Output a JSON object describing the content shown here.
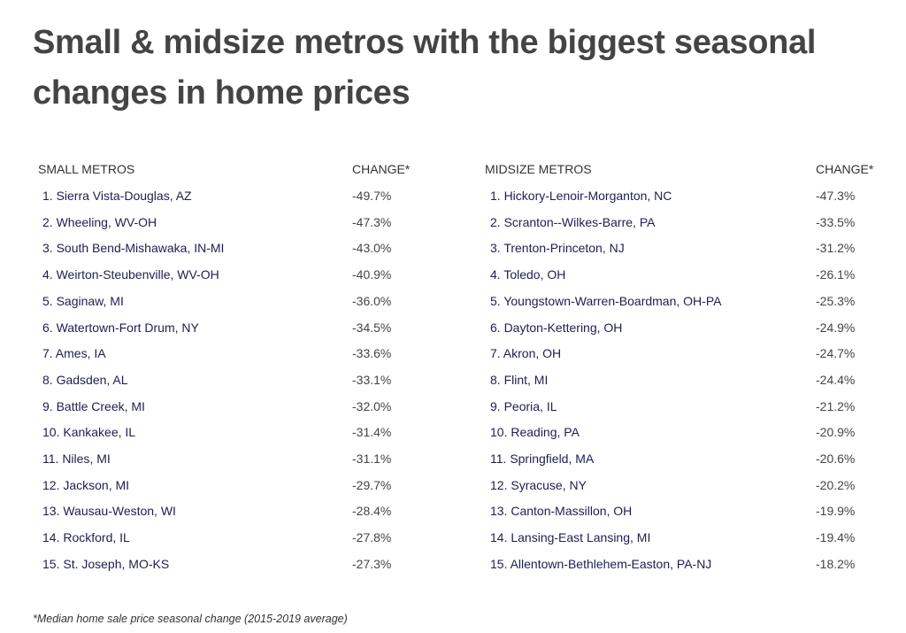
{
  "title": "Small & midsize metros with the biggest seasonal changes in home prices",
  "tables": [
    {
      "headers": [
        "SMALL METROS",
        "CHANGE*"
      ],
      "rows": [
        [
          "1. Sierra Vista-Douglas, AZ",
          "-49.7%"
        ],
        [
          "2. Wheeling, WV-OH",
          "-47.3%"
        ],
        [
          "3. South Bend-Mishawaka, IN-MI",
          "-43.0%"
        ],
        [
          "4. Weirton-Steubenville, WV-OH",
          "-40.9%"
        ],
        [
          "5. Saginaw, MI",
          "-36.0%"
        ],
        [
          "6. Watertown-Fort Drum, NY",
          "-34.5%"
        ],
        [
          "7. Ames, IA",
          "-33.6%"
        ],
        [
          "8. Gadsden, AL",
          "-33.1%"
        ],
        [
          "9. Battle Creek, MI",
          "-32.0%"
        ],
        [
          "10. Kankakee, IL",
          "-31.4%"
        ],
        [
          "11. Niles, MI",
          "-31.1%"
        ],
        [
          "12. Jackson, MI",
          "-29.7%"
        ],
        [
          "13. Wausau-Weston, WI",
          "-28.4%"
        ],
        [
          "14. Rockford, IL",
          "-27.8%"
        ],
        [
          "15. St. Joseph, MO-KS",
          "-27.3%"
        ]
      ]
    },
    {
      "headers": [
        "MIDSIZE METROS",
        "CHANGE*"
      ],
      "rows": [
        [
          "1. Hickory-Lenoir-Morganton, NC",
          "-47.3%"
        ],
        [
          "2. Scranton--Wilkes-Barre, PA",
          "-33.5%"
        ],
        [
          "3. Trenton-Princeton, NJ",
          "-31.2%"
        ],
        [
          "4. Toledo, OH",
          "-26.1%"
        ],
        [
          "5. Youngstown-Warren-Boardman, OH-PA",
          "-25.3%"
        ],
        [
          "6. Dayton-Kettering, OH",
          "-24.9%"
        ],
        [
          "7. Akron, OH",
          "-24.7%"
        ],
        [
          "8. Flint, MI",
          "-24.4%"
        ],
        [
          "9. Peoria, IL",
          "-21.2%"
        ],
        [
          "10. Reading, PA",
          "-20.9%"
        ],
        [
          "11. Springfield, MA",
          "-20.6%"
        ],
        [
          "12. Syracuse, NY",
          "-20.2%"
        ],
        [
          "13. Canton-Massillon, OH",
          "-19.9%"
        ],
        [
          "14. Lansing-East Lansing, MI",
          "-19.4%"
        ],
        [
          "15. Allentown-Bethlehem-Easton, PA-NJ",
          "-18.2%"
        ]
      ]
    }
  ],
  "footnote": "*Median home sale price seasonal change (2015-2019 average)"
}
